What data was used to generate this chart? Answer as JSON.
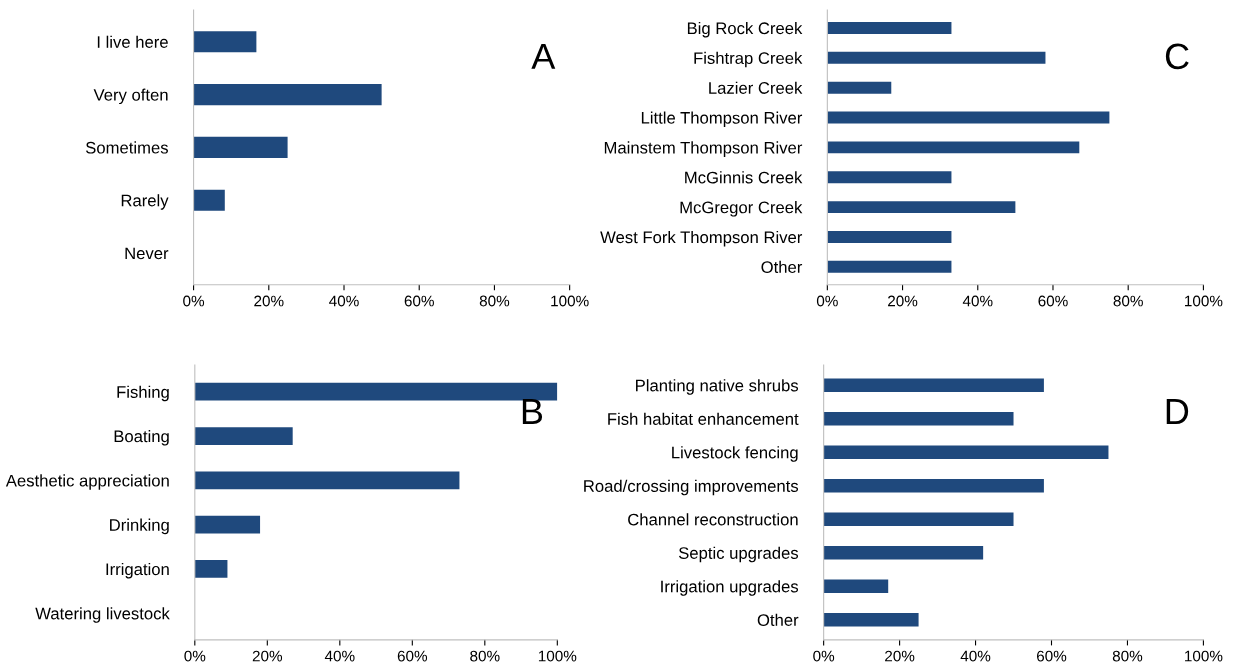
{
  "chart_data": [
    {
      "type": "bar",
      "orientation": "horizontal",
      "categories": [
        "I live here",
        "Very often",
        "Sometimes",
        "Rarely",
        "Never"
      ],
      "values": [
        16.7,
        50,
        25,
        8.3,
        0
      ],
      "color": "#1f497d",
      "xlim": [
        0,
        100
      ],
      "xticks": [
        {
          "value": 0,
          "label": "0%"
        },
        {
          "value": 20,
          "label": "20%"
        },
        {
          "value": 40,
          "label": "40%"
        },
        {
          "value": 60,
          "label": "60%"
        },
        {
          "value": 80,
          "label": "80%"
        },
        {
          "value": 100,
          "label": "100%"
        }
      ],
      "annotations": [
        "A"
      ],
      "grid": false,
      "legend": false
    },
    {
      "type": "bar",
      "orientation": "horizontal",
      "categories": [
        "Big Rock Creek",
        "Fishtrap Creek",
        "Lazier Creek",
        "Little Thompson River",
        "Mainstem Thompson River",
        "McGinnis Creek",
        "McGregor Creek",
        "West Fork Thompson River",
        "Other"
      ],
      "values": [
        33,
        58,
        17,
        75,
        67,
        33,
        50,
        33,
        33
      ],
      "color": "#1f497d",
      "xlim": [
        0,
        100
      ],
      "xticks": [
        {
          "value": 0,
          "label": "0%"
        },
        {
          "value": 20,
          "label": "20%"
        },
        {
          "value": 40,
          "label": "40%"
        },
        {
          "value": 60,
          "label": "60%"
        },
        {
          "value": 80,
          "label": "80%"
        },
        {
          "value": 100,
          "label": "100%"
        }
      ],
      "annotations": [
        "C"
      ],
      "grid": false,
      "legend": false
    },
    {
      "type": "bar",
      "orientation": "horizontal",
      "categories": [
        "Fishing",
        "Boating",
        "Aesthetic appreciation",
        "Drinking",
        "Irrigation",
        "Watering livestock"
      ],
      "values": [
        100,
        27,
        73,
        18,
        9,
        0
      ],
      "color": "#1f497d",
      "xlim": [
        0,
        100
      ],
      "xticks": [
        {
          "value": 0,
          "label": "0%"
        },
        {
          "value": 20,
          "label": "20%"
        },
        {
          "value": 40,
          "label": "40%"
        },
        {
          "value": 60,
          "label": "60%"
        },
        {
          "value": 80,
          "label": "80%"
        },
        {
          "value": 100,
          "label": "100%"
        }
      ],
      "annotations": [
        "B"
      ],
      "grid": false,
      "legend": false
    },
    {
      "type": "bar",
      "orientation": "horizontal",
      "categories": [
        "Planting native shrubs",
        "Fish habitat enhancement",
        "Livestock fencing",
        "Road/crossing improvements",
        "Channel reconstruction",
        "Septic upgrades",
        "Irrigation upgrades",
        "Other"
      ],
      "values": [
        58,
        50,
        75,
        58,
        50,
        42,
        17,
        25
      ],
      "color": "#1f497d",
      "xlim": [
        0,
        100
      ],
      "xticks": [
        {
          "value": 0,
          "label": "0%"
        },
        {
          "value": 20,
          "label": "20%"
        },
        {
          "value": 40,
          "label": "40%"
        },
        {
          "value": 60,
          "label": "60%"
        },
        {
          "value": 80,
          "label": "80%"
        },
        {
          "value": 100,
          "label": "100%"
        }
      ],
      "annotations": [
        "D"
      ],
      "grid": false,
      "legend": false
    }
  ]
}
